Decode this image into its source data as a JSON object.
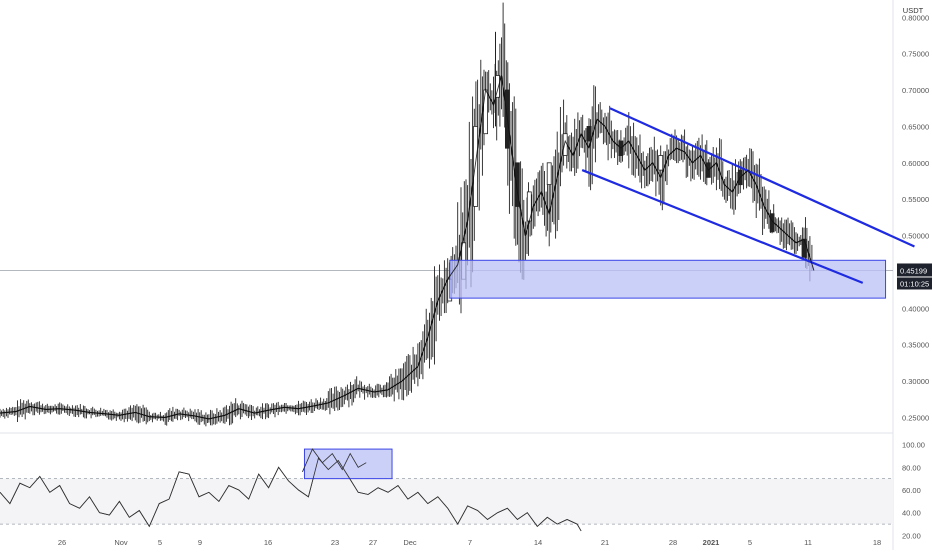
{
  "chart_data": {
    "type": "candlestick",
    "currency": "USDT",
    "price_axis": {
      "ticks": [
        "0.80000",
        "0.75000",
        "0.70000",
        "0.65000",
        "0.60000",
        "0.55000",
        "0.50000",
        "0.45000",
        "0.40000",
        "0.35000",
        "0.30000",
        "0.25000"
      ],
      "range": [
        0.23,
        0.81
      ]
    },
    "time_axis": {
      "ticks": [
        "26",
        "Nov",
        "5",
        "9",
        "16",
        "23",
        "27",
        "Dec",
        "7",
        "14",
        "21",
        "28",
        "2021",
        "5",
        "11",
        "18"
      ],
      "bold_ticks": [
        "2021"
      ]
    },
    "current_price": {
      "value": 0.45199,
      "label": "0.45199",
      "countdown": "01:10:25"
    },
    "price_path": [
      {
        "x": 0.0,
        "p": 0.256
      },
      {
        "x": 0.8,
        "p": 0.258
      },
      {
        "x": 1.5,
        "p": 0.265
      },
      {
        "x": 2.3,
        "p": 0.261
      },
      {
        "x": 3.0,
        "p": 0.262
      },
      {
        "x": 3.8,
        "p": 0.26
      },
      {
        "x": 4.5,
        "p": 0.257
      },
      {
        "x": 5.3,
        "p": 0.255
      },
      {
        "x": 6.0,
        "p": 0.253
      },
      {
        "x": 6.8,
        "p": 0.257
      },
      {
        "x": 7.5,
        "p": 0.251
      },
      {
        "x": 8.3,
        "p": 0.25
      },
      {
        "x": 9.0,
        "p": 0.255
      },
      {
        "x": 9.8,
        "p": 0.252
      },
      {
        "x": 10.5,
        "p": 0.248
      },
      {
        "x": 11.3,
        "p": 0.253
      },
      {
        "x": 12.0,
        "p": 0.262
      },
      {
        "x": 12.8,
        "p": 0.256
      },
      {
        "x": 13.5,
        "p": 0.26
      },
      {
        "x": 14.3,
        "p": 0.264
      },
      {
        "x": 15.0,
        "p": 0.262
      },
      {
        "x": 15.8,
        "p": 0.266
      },
      {
        "x": 16.5,
        "p": 0.27
      },
      {
        "x": 17.3,
        "p": 0.28
      },
      {
        "x": 18.0,
        "p": 0.29
      },
      {
        "x": 18.8,
        "p": 0.285
      },
      {
        "x": 19.5,
        "p": 0.288
      },
      {
        "x": 20.2,
        "p": 0.3
      },
      {
        "x": 21.0,
        "p": 0.32
      },
      {
        "x": 21.5,
        "p": 0.36
      },
      {
        "x": 22.0,
        "p": 0.41
      },
      {
        "x": 22.5,
        "p": 0.44
      },
      {
        "x": 23.0,
        "p": 0.46
      },
      {
        "x": 23.5,
        "p": 0.52
      },
      {
        "x": 24.0,
        "p": 0.62
      },
      {
        "x": 24.4,
        "p": 0.7
      },
      {
        "x": 24.8,
        "p": 0.68
      },
      {
        "x": 25.2,
        "p": 0.72
      },
      {
        "x": 25.6,
        "p": 0.64
      },
      {
        "x": 26.0,
        "p": 0.56
      },
      {
        "x": 26.4,
        "p": 0.5
      },
      {
        "x": 26.8,
        "p": 0.54
      },
      {
        "x": 27.2,
        "p": 0.56
      },
      {
        "x": 27.6,
        "p": 0.53
      },
      {
        "x": 28.0,
        "p": 0.58
      },
      {
        "x": 28.4,
        "p": 0.63
      },
      {
        "x": 28.8,
        "p": 0.61
      },
      {
        "x": 29.2,
        "p": 0.64
      },
      {
        "x": 29.6,
        "p": 0.62
      },
      {
        "x": 30.0,
        "p": 0.66
      },
      {
        "x": 30.4,
        "p": 0.65
      },
      {
        "x": 30.8,
        "p": 0.63
      },
      {
        "x": 31.2,
        "p": 0.62
      },
      {
        "x": 31.6,
        "p": 0.63
      },
      {
        "x": 32.0,
        "p": 0.61
      },
      {
        "x": 32.4,
        "p": 0.59
      },
      {
        "x": 32.8,
        "p": 0.6
      },
      {
        "x": 33.2,
        "p": 0.58
      },
      {
        "x": 33.6,
        "p": 0.61
      },
      {
        "x": 34.0,
        "p": 0.62
      },
      {
        "x": 34.4,
        "p": 0.615
      },
      {
        "x": 34.8,
        "p": 0.6
      },
      {
        "x": 35.2,
        "p": 0.61
      },
      {
        "x": 35.6,
        "p": 0.59
      },
      {
        "x": 36.0,
        "p": 0.6
      },
      {
        "x": 36.4,
        "p": 0.57
      },
      {
        "x": 36.8,
        "p": 0.56
      },
      {
        "x": 37.2,
        "p": 0.58
      },
      {
        "x": 37.6,
        "p": 0.59
      },
      {
        "x": 38.0,
        "p": 0.57
      },
      {
        "x": 38.4,
        "p": 0.54
      },
      {
        "x": 38.8,
        "p": 0.52
      },
      {
        "x": 39.2,
        "p": 0.51
      },
      {
        "x": 39.6,
        "p": 0.5
      },
      {
        "x": 40.0,
        "p": 0.49
      },
      {
        "x": 40.4,
        "p": 0.495
      },
      {
        "x": 40.7,
        "p": 0.47
      },
      {
        "x": 40.9,
        "p": 0.452
      }
    ],
    "candle_bodies": [
      {
        "x": 22.6,
        "o": 0.41,
        "c": 0.44
      },
      {
        "x": 23.3,
        "o": 0.44,
        "c": 0.49
      },
      {
        "x": 23.9,
        "o": 0.54,
        "c": 0.65
      },
      {
        "x": 24.4,
        "o": 0.64,
        "c": 0.7
      },
      {
        "x": 25.0,
        "o": 0.69,
        "c": 0.72
      },
      {
        "x": 25.5,
        "o": 0.7,
        "c": 0.62
      },
      {
        "x": 26.0,
        "o": 0.6,
        "c": 0.54
      },
      {
        "x": 26.6,
        "o": 0.52,
        "c": 0.56
      },
      {
        "x": 27.6,
        "o": 0.57,
        "c": 0.6
      },
      {
        "x": 28.4,
        "o": 0.61,
        "c": 0.64
      },
      {
        "x": 29.6,
        "o": 0.65,
        "c": 0.63
      },
      {
        "x": 31.2,
        "o": 0.63,
        "c": 0.61
      },
      {
        "x": 33.2,
        "o": 0.59,
        "c": 0.61
      },
      {
        "x": 35.6,
        "o": 0.6,
        "c": 0.58
      },
      {
        "x": 37.2,
        "o": 0.59,
        "c": 0.57
      },
      {
        "x": 38.8,
        "o": 0.53,
        "c": 0.505
      },
      {
        "x": 40.4,
        "o": 0.495,
        "c": 0.47
      }
    ],
    "high_low_extremes": {
      "high": 0.78,
      "low": 0.245
    },
    "indicator": {
      "ticks": [
        "100.00",
        "80.00",
        "60.00",
        "40.00",
        "20.00"
      ],
      "range": [
        16,
        104
      ],
      "bands": [
        70,
        30
      ],
      "path": [
        {
          "x": 0.0,
          "v": 58
        },
        {
          "x": 0.5,
          "v": 48
        },
        {
          "x": 1.0,
          "v": 66
        },
        {
          "x": 1.5,
          "v": 62
        },
        {
          "x": 2.0,
          "v": 72
        },
        {
          "x": 2.5,
          "v": 58
        },
        {
          "x": 3.0,
          "v": 64
        },
        {
          "x": 3.5,
          "v": 48
        },
        {
          "x": 4.0,
          "v": 44
        },
        {
          "x": 4.5,
          "v": 54
        },
        {
          "x": 5.0,
          "v": 40
        },
        {
          "x": 5.5,
          "v": 38
        },
        {
          "x": 6.0,
          "v": 50
        },
        {
          "x": 6.5,
          "v": 36
        },
        {
          "x": 7.0,
          "v": 42
        },
        {
          "x": 7.5,
          "v": 28
        },
        {
          "x": 8.0,
          "v": 48
        },
        {
          "x": 8.5,
          "v": 52
        },
        {
          "x": 9.0,
          "v": 76
        },
        {
          "x": 9.5,
          "v": 74
        },
        {
          "x": 10.0,
          "v": 54
        },
        {
          "x": 10.5,
          "v": 58
        },
        {
          "x": 11.0,
          "v": 50
        },
        {
          "x": 11.5,
          "v": 64
        },
        {
          "x": 12.0,
          "v": 60
        },
        {
          "x": 12.5,
          "v": 52
        },
        {
          "x": 13.0,
          "v": 74
        },
        {
          "x": 13.5,
          "v": 62
        },
        {
          "x": 14.0,
          "v": 80
        },
        {
          "x": 14.5,
          "v": 68
        },
        {
          "x": 15.0,
          "v": 60
        },
        {
          "x": 15.5,
          "v": 54
        },
        {
          "x": 16.0,
          "v": 88
        },
        {
          "x": 16.5,
          "v": 78
        },
        {
          "x": 17.0,
          "v": 86
        },
        {
          "x": 17.5,
          "v": 72
        },
        {
          "x": 18.0,
          "v": 58
        },
        {
          "x": 18.5,
          "v": 56
        },
        {
          "x": 19.0,
          "v": 62
        },
        {
          "x": 19.5,
          "v": 58
        },
        {
          "x": 20.0,
          "v": 64
        },
        {
          "x": 20.5,
          "v": 52
        },
        {
          "x": 21.0,
          "v": 58
        },
        {
          "x": 21.5,
          "v": 48
        },
        {
          "x": 22.0,
          "v": 54
        },
        {
          "x": 22.5,
          "v": 44
        },
        {
          "x": 23.0,
          "v": 30
        },
        {
          "x": 23.5,
          "v": 46
        },
        {
          "x": 24.0,
          "v": 42
        },
        {
          "x": 24.5,
          "v": 34
        },
        {
          "x": 25.0,
          "v": 40
        },
        {
          "x": 25.5,
          "v": 44
        },
        {
          "x": 26.0,
          "v": 34
        },
        {
          "x": 26.5,
          "v": 40
        },
        {
          "x": 27.0,
          "v": 28
        },
        {
          "x": 27.5,
          "v": 36
        },
        {
          "x": 28.0,
          "v": 30
        },
        {
          "x": 28.5,
          "v": 34
        },
        {
          "x": 29.0,
          "v": 30
        },
        {
          "x": 29.2,
          "v": 24
        }
      ],
      "highlight_path": [
        {
          "x": 10.8,
          "v": 76
        },
        {
          "x": 11.3,
          "v": 96
        },
        {
          "x": 11.8,
          "v": 84
        },
        {
          "x": 12.3,
          "v": 92
        },
        {
          "x": 12.8,
          "v": 78
        },
        {
          "x": 13.2,
          "v": 92
        },
        {
          "x": 13.6,
          "v": 80
        },
        {
          "x": 14.0,
          "v": 84
        }
      ]
    },
    "annotations": {
      "channel_color": "#1f2be0",
      "zone_fill": "#b9c0f7",
      "zone_stroke": "#3b46e6",
      "upper_line": {
        "p1": {
          "t": 30.0,
          "p": 0.675
        },
        "p2": {
          "t": 45.3,
          "p": 0.485
        }
      },
      "lower_line": {
        "p1": {
          "t": 28.6,
          "p": 0.59
        },
        "p2": {
          "t": 42.7,
          "p": 0.435
        }
      },
      "support_zone": {
        "t1": 22.6,
        "t2": 44.5,
        "p1": 0.466,
        "p2": 0.414
      },
      "indicator_zone": {
        "t1": 21.4,
        "t2": 25.8,
        "v1": 96,
        "v2": 70
      }
    }
  }
}
